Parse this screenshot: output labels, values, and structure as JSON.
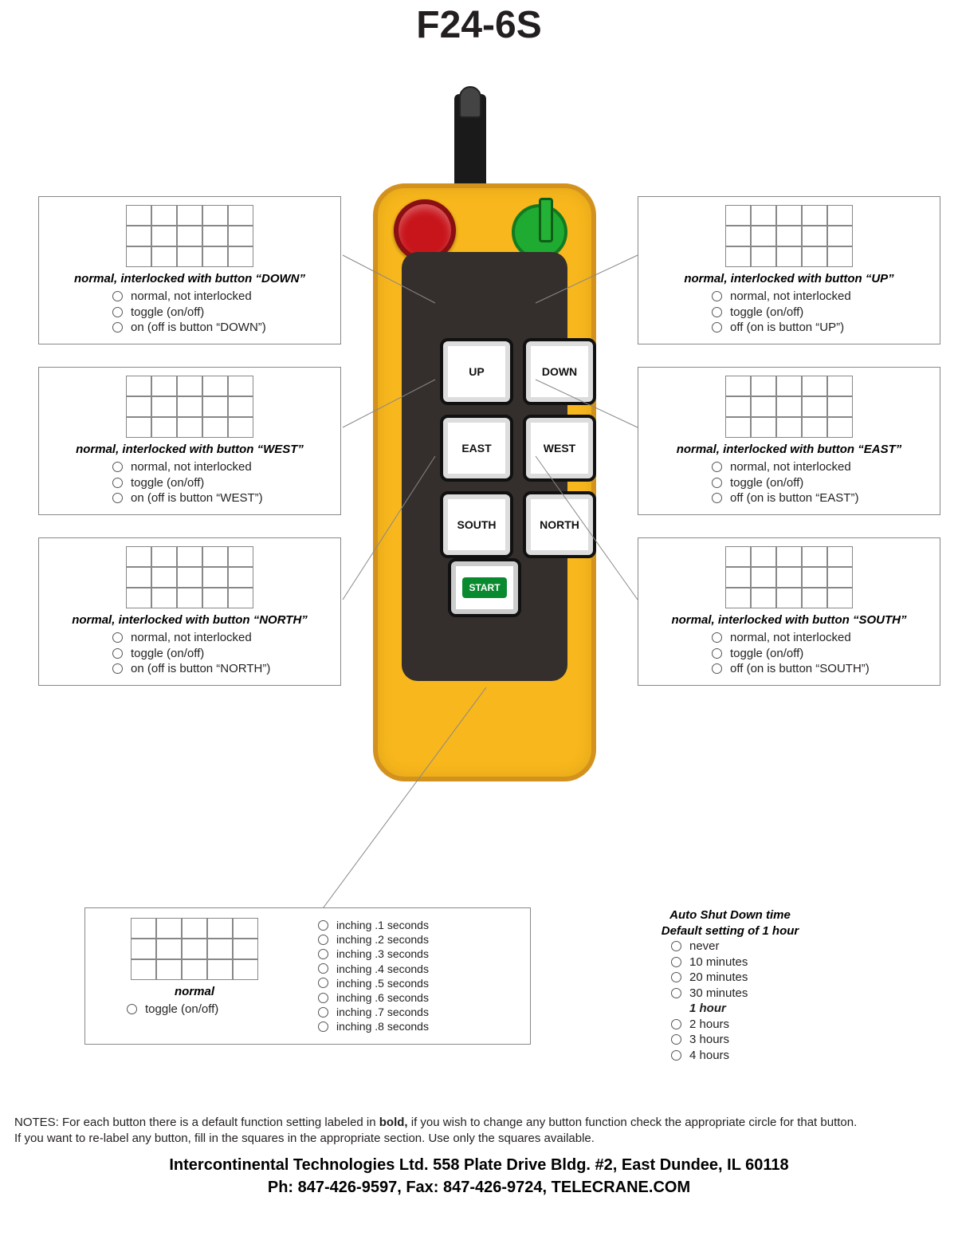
{
  "title": "F24-6S",
  "remote": {
    "body_color": "#f8b71c",
    "panel_color": "#342f2c",
    "estop_color": "#c8151b",
    "key_color": "#1faa31",
    "buttons": [
      "UP",
      "DOWN",
      "EAST",
      "WEST",
      "SOUTH",
      "NORTH"
    ],
    "start_label": "START"
  },
  "left_boxes": [
    {
      "default": "normal, interlocked with button “DOWN”",
      "opts": [
        "normal, not interlocked",
        "toggle (on/off)",
        "on (off is button “DOWN”)"
      ]
    },
    {
      "default": "normal, interlocked with button “WEST”",
      "opts": [
        "normal, not interlocked",
        "toggle (on/off)",
        "on (off is button “WEST”)"
      ]
    },
    {
      "default": "normal, interlocked with button “NORTH”",
      "opts": [
        "normal, not interlocked",
        "toggle (on/off)",
        "on (off is button “NORTH”)"
      ]
    }
  ],
  "right_boxes": [
    {
      "default": "normal, interlocked with button “UP”",
      "opts": [
        "normal, not interlocked",
        "toggle (on/off)",
        "off (on is button “UP”)"
      ]
    },
    {
      "default": "normal, interlocked with button “EAST”",
      "opts": [
        "normal, not interlocked",
        "toggle (on/off)",
        "off (on is button “EAST”)"
      ]
    },
    {
      "default": "normal, interlocked with button “SOUTH”",
      "opts": [
        "normal, not interlocked",
        "toggle (on/off)",
        "off (on is button “SOUTH”)"
      ]
    }
  ],
  "start_box": {
    "default": "normal",
    "left_opt": "toggle (on/off)",
    "right_opts": [
      "inching .1 seconds",
      "inching .2 seconds",
      "inching .3 seconds",
      "inching .4 seconds",
      "inching .5 seconds",
      "inching .6 seconds",
      "inching .7 seconds",
      "inching .8 seconds"
    ]
  },
  "shutdown": {
    "header1": "Auto Shut Down time",
    "header2": "Default setting of 1 hour",
    "opts": [
      "never",
      "10 minutes",
      "20 minutes",
      "30 minutes",
      "1 hour",
      "2 hours",
      "3 hours",
      "4 hours"
    ],
    "bold_index": 4
  },
  "notes_prefix": "NOTES: For each button there is a default function setting labeled in ",
  "notes_bold": "bold,",
  "notes_rest": " if you wish to change any button function check the appropriate circle for that button.",
  "notes_line2": "If you want to re-label any button, fill in the squares in the appropriate section. Use only the squares available.",
  "footer1": "Intercontinental Technologies Ltd. 558 Plate Drive Bldg. #2, East Dundee, IL  60118",
  "footer2": "Ph: 847-426-9597, Fax: 847-426-9724, TELECRANE.COM",
  "leader_color": "#888888"
}
